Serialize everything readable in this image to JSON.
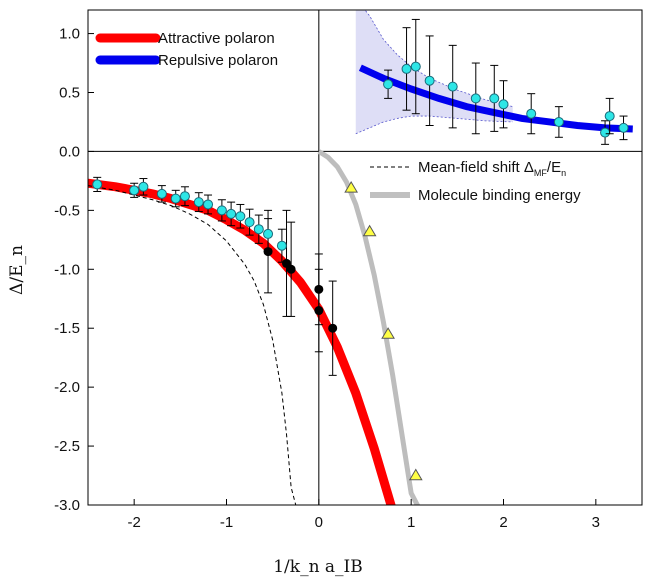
{
  "chart_data": {
    "type": "scatter",
    "xlabel": "1/k_n a_IB",
    "ylabel": "Δ/E_n",
    "xlim": [
      -2.5,
      3.5
    ],
    "ylim": [
      -3.0,
      1.2
    ],
    "x_ticks": [
      "-2",
      "-1",
      "0",
      "1",
      "2",
      "3"
    ],
    "y_ticks": [
      "1.0",
      "0.5",
      "0.0",
      "-0.5",
      "-1.0",
      "-1.5",
      "-2.0",
      "-2.5",
      "-3.0"
    ],
    "legend_top_left": [
      {
        "label": "Attractive polaron",
        "color": "#ff0000"
      },
      {
        "label": "Repulsive polaron",
        "color": "#0000ee"
      }
    ],
    "legend_right": [
      {
        "label_main": "Mean-field shift Δ",
        "label_sub": "MF",
        "label_mid": "/E",
        "label_sub2": "n",
        "style": "dashed"
      },
      {
        "label": "Molecule binding energy",
        "color": "#c0c0c0"
      }
    ],
    "colors": {
      "attractive": "#ff0000",
      "repulsive": "#0000ee",
      "molecule": "#bdbdbd",
      "cyan_marker": "#2ee6e6",
      "black_marker": "#000000",
      "yellow_marker": "#ffff44",
      "band": "#c8c8f0"
    },
    "series": [
      {
        "name": "Attractive polaron",
        "kind": "line",
        "x": [
          -2.5,
          -2.2,
          -2.0,
          -1.8,
          -1.6,
          -1.4,
          -1.2,
          -1.0,
          -0.8,
          -0.6,
          -0.4,
          -0.2,
          0.0,
          0.2,
          0.4,
          0.6,
          0.8
        ],
        "y": [
          -0.27,
          -0.3,
          -0.33,
          -0.36,
          -0.4,
          -0.45,
          -0.5,
          -0.58,
          -0.67,
          -0.78,
          -0.93,
          -1.11,
          -1.34,
          -1.66,
          -2.05,
          -2.52,
          -3.05
        ]
      },
      {
        "name": "Repulsive polaron",
        "kind": "line",
        "x": [
          0.45,
          0.7,
          1.0,
          1.3,
          1.6,
          1.9,
          2.2,
          2.5,
          2.8,
          3.1,
          3.4
        ],
        "y": [
          0.71,
          0.62,
          0.53,
          0.45,
          0.38,
          0.33,
          0.28,
          0.25,
          0.22,
          0.2,
          0.19
        ]
      },
      {
        "name": "Mean-field shift",
        "kind": "dashed",
        "x": [
          -2.5,
          -2.2,
          -2.0,
          -1.8,
          -1.6,
          -1.4,
          -1.2,
          -1.0,
          -0.8,
          -0.7,
          -0.6,
          -0.5,
          -0.4,
          -0.35,
          -0.3,
          -0.25
        ],
        "y": [
          -0.29,
          -0.33,
          -0.37,
          -0.41,
          -0.46,
          -0.53,
          -0.62,
          -0.76,
          -0.96,
          -1.1,
          -1.3,
          -1.6,
          -2.05,
          -2.4,
          -2.85,
          -3.0
        ]
      },
      {
        "name": "Molecule binding energy",
        "kind": "line",
        "x": [
          0.0,
          0.1,
          0.2,
          0.3,
          0.4,
          0.5,
          0.6,
          0.7,
          0.8,
          0.9,
          1.0,
          1.1
        ],
        "y": [
          0.0,
          -0.05,
          -0.13,
          -0.26,
          -0.45,
          -0.72,
          -1.05,
          -1.45,
          -1.9,
          -2.4,
          -2.9,
          -3.05
        ]
      },
      {
        "name": "Repulsive band upper",
        "kind": "band_upper",
        "x": [
          0.4,
          0.55,
          0.7,
          0.85,
          1.0,
          1.2,
          1.5,
          1.8,
          2.1
        ],
        "y": [
          1.3,
          1.15,
          0.95,
          0.82,
          0.72,
          0.62,
          0.52,
          0.44,
          0.38
        ]
      },
      {
        "name": "Repulsive band lower",
        "kind": "band_lower",
        "x": [
          0.4,
          0.55,
          0.7,
          0.85,
          1.0,
          1.2,
          1.5,
          1.8,
          2.1
        ],
        "y": [
          0.15,
          0.2,
          0.25,
          0.28,
          0.3,
          0.3,
          0.28,
          0.26,
          0.25
        ]
      }
    ],
    "points_cyan": [
      {
        "x": -2.4,
        "y": -0.28,
        "err": 0.06
      },
      {
        "x": -2.0,
        "y": -0.33,
        "err": 0.06
      },
      {
        "x": -1.9,
        "y": -0.3,
        "err": 0.07
      },
      {
        "x": -1.7,
        "y": -0.36,
        "err": 0.07
      },
      {
        "x": -1.55,
        "y": -0.4,
        "err": 0.07
      },
      {
        "x": -1.45,
        "y": -0.38,
        "err": 0.08
      },
      {
        "x": -1.3,
        "y": -0.43,
        "err": 0.08
      },
      {
        "x": -1.2,
        "y": -0.45,
        "err": 0.08
      },
      {
        "x": -1.05,
        "y": -0.5,
        "err": 0.09
      },
      {
        "x": -0.95,
        "y": -0.53,
        "err": 0.1
      },
      {
        "x": -0.85,
        "y": -0.55,
        "err": 0.1
      },
      {
        "x": -0.75,
        "y": -0.6,
        "err": 0.11
      },
      {
        "x": -0.65,
        "y": -0.66,
        "err": 0.12
      },
      {
        "x": -0.55,
        "y": -0.7,
        "err": 0.13
      },
      {
        "x": -0.4,
        "y": -0.8,
        "err": 0.14
      },
      {
        "x": 0.75,
        "y": 0.57,
        "err": 0.12
      },
      {
        "x": 0.95,
        "y": 0.7,
        "err": 0.35
      },
      {
        "x": 1.05,
        "y": 0.72,
        "err": 0.4
      },
      {
        "x": 1.2,
        "y": 0.6,
        "err": 0.38
      },
      {
        "x": 1.45,
        "y": 0.55,
        "err": 0.35
      },
      {
        "x": 1.7,
        "y": 0.45,
        "err": 0.3
      },
      {
        "x": 1.9,
        "y": 0.45,
        "err": 0.28
      },
      {
        "x": 2.0,
        "y": 0.4,
        "err": 0.2
      },
      {
        "x": 2.3,
        "y": 0.32,
        "err": 0.17
      },
      {
        "x": 2.6,
        "y": 0.25,
        "err": 0.13
      },
      {
        "x": 3.1,
        "y": 0.16,
        "err": 0.1
      },
      {
        "x": 3.15,
        "y": 0.3,
        "err": 0.15
      },
      {
        "x": 3.3,
        "y": 0.2,
        "err": 0.1
      }
    ],
    "points_black": [
      {
        "x": -0.55,
        "y": -0.85,
        "err": 0.35
      },
      {
        "x": -0.35,
        "y": -0.95,
        "err": 0.45
      },
      {
        "x": -0.3,
        "y": -1.0,
        "err": 0.4
      },
      {
        "x": 0.0,
        "y": -1.17,
        "err": 0.3
      },
      {
        "x": 0.0,
        "y": -1.35,
        "err": 0.35
      },
      {
        "x": 0.15,
        "y": -1.5,
        "err": 0.4
      }
    ],
    "points_yellow": [
      {
        "x": 0.35,
        "y": -0.31
      },
      {
        "x": 0.55,
        "y": -0.68
      },
      {
        "x": 0.75,
        "y": -1.55
      },
      {
        "x": 1.05,
        "y": -2.75
      }
    ]
  }
}
